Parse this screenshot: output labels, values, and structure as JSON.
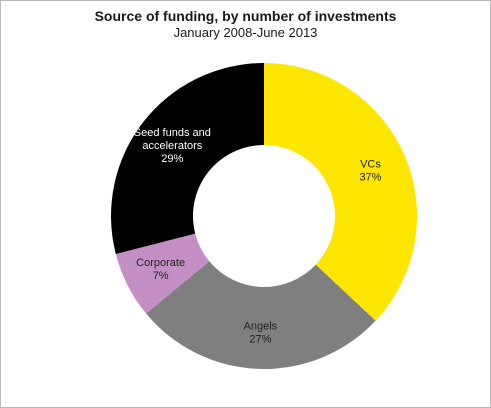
{
  "chart_data": {
    "type": "pie",
    "title": "Source of funding, by number of investments",
    "subtitle": "January 2008-June 2013",
    "slices": [
      {
        "label": "VCs",
        "value": 37,
        "display": "37%",
        "color": "#ffe600",
        "label_color": "#222222"
      },
      {
        "label": "Angels",
        "value": 27,
        "display": "27%",
        "color": "#7f7f7f",
        "label_color": "#222222"
      },
      {
        "label": "Corporate",
        "value": 7,
        "display": "7%",
        "color": "#c48fc4",
        "label_color": "#222222"
      },
      {
        "label": "Seed funds and accelerators",
        "label_lines": [
          "Seed funds and",
          "accelerators"
        ],
        "value": 29,
        "display": "29%",
        "color": "#000000",
        "label_color": "#ffffff"
      }
    ]
  }
}
